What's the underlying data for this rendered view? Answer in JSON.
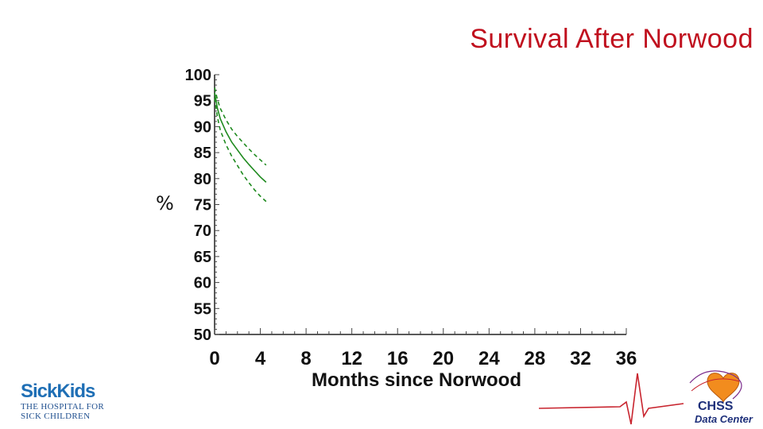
{
  "title": "Survival After Norwood",
  "chart_data": {
    "type": "line",
    "title": "Survival After Norwood",
    "xlabel": "Months since Norwood",
    "ylabel": "%",
    "xlim": [
      0,
      36
    ],
    "ylim": [
      50,
      100
    ],
    "xticks": [
      "0",
      "4",
      "8",
      "12",
      "16",
      "20",
      "24",
      "28",
      "32",
      "36"
    ],
    "yticks": [
      "100",
      "95",
      "90",
      "85",
      "80",
      "75",
      "70",
      "65",
      "60",
      "55",
      "50"
    ],
    "series": [
      {
        "role": "estimate",
        "style": "solid",
        "color": "#1e8a1e",
        "x": [
          0,
          0.25,
          0.5,
          1,
          1.5,
          2,
          2.5,
          3,
          3.5,
          4,
          4.5
        ],
        "y": [
          96.5,
          93.5,
          91.5,
          89,
          87,
          85.5,
          84,
          82.7,
          81.5,
          80.3,
          79.3
        ]
      },
      {
        "role": "upper-confidence-limit",
        "style": "dashed",
        "color": "#1e8a1e",
        "x": [
          0,
          0.25,
          0.5,
          1,
          1.5,
          2,
          2.5,
          3,
          3.5,
          4,
          4.5
        ],
        "y": [
          97.5,
          95.2,
          93.5,
          91.3,
          89.5,
          88.1,
          86.9,
          85.7,
          84.6,
          83.6,
          82.6
        ]
      },
      {
        "role": "lower-confidence-limit",
        "style": "dashed",
        "color": "#1e8a1e",
        "x": [
          0,
          0.25,
          0.5,
          1,
          1.5,
          2,
          2.5,
          3,
          3.5,
          4,
          4.5
        ],
        "y": [
          95.5,
          91.8,
          89.3,
          86.5,
          84.3,
          82.5,
          80.7,
          79.2,
          77.8,
          76.6,
          75.6
        ]
      }
    ],
    "grid": false,
    "legend": false
  },
  "logos": {
    "left": {
      "brand": "SickKids",
      "line1": "THE HOSPITAL FOR",
      "line2": "SICK CHILDREN"
    },
    "right": {
      "line1": "CHSS",
      "line2": "Data Center"
    }
  },
  "colors": {
    "title": "#c0101e",
    "curve": "#1e8a1e",
    "logo_blue": "#1f6fb5"
  }
}
